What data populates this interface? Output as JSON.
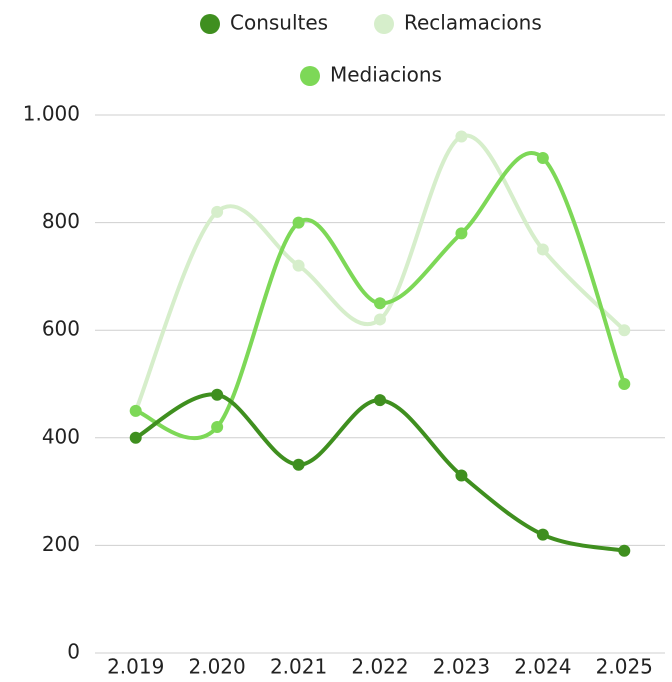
{
  "chart_data": {
    "type": "line",
    "categories": [
      "2.019",
      "2.020",
      "2.021",
      "2.022",
      "2.023",
      "2.024",
      "2.025"
    ],
    "series": [
      {
        "name": "Consultes",
        "color": "#3f8f1f",
        "values": [
          400,
          480,
          350,
          470,
          330,
          220,
          190
        ]
      },
      {
        "name": "Reclamacions",
        "color": "#d6eecb",
        "values": [
          450,
          820,
          720,
          620,
          960,
          750,
          600
        ]
      },
      {
        "name": "Mediacions",
        "color": "#7dd857",
        "values": [
          450,
          420,
          800,
          650,
          780,
          920,
          500
        ]
      }
    ],
    "ylim": [
      0,
      1000
    ],
    "yticks": [
      0,
      200,
      400,
      600,
      800,
      {
        "value": 1000,
        "label": "1.000"
      }
    ],
    "grid": true,
    "legend": "top",
    "smooth": true
  }
}
